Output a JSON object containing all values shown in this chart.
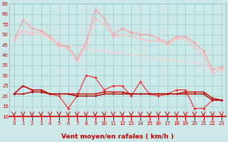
{
  "xlabel": "Vent moyen/en rafales ( km/h )",
  "x": [
    0,
    1,
    2,
    3,
    4,
    5,
    6,
    7,
    8,
    9,
    10,
    11,
    12,
    13,
    14,
    15,
    16,
    17,
    18,
    19,
    20,
    21,
    22,
    23
  ],
  "series": [
    {
      "name": "rafales_max_upper",
      "color": "#ff9999",
      "marker": "D",
      "markersize": 2.0,
      "linewidth": 0.8,
      "values": [
        47,
        57,
        53,
        52,
        49,
        45,
        44,
        38,
        46,
        62,
        58,
        50,
        53,
        51,
        50,
        50,
        48,
        46,
        49,
        49,
        46,
        42,
        33,
        34
      ]
    },
    {
      "name": "rafales_avg",
      "color": "#ffbbbb",
      "marker": "D",
      "markersize": 2.0,
      "linewidth": 0.8,
      "values": [
        47,
        52,
        51,
        51,
        48,
        44,
        43,
        37,
        45,
        58,
        55,
        49,
        50,
        49,
        48,
        47,
        47,
        45,
        48,
        48,
        44,
        40,
        31,
        33
      ]
    },
    {
      "name": "rafales_trend",
      "color": "#ffcccc",
      "marker": null,
      "markersize": 0,
      "linewidth": 0.8,
      "values": [
        47,
        51,
        50,
        50,
        48,
        46,
        45,
        44,
        43,
        42,
        42,
        41,
        41,
        40,
        40,
        39,
        38,
        38,
        37,
        37,
        36,
        35,
        34,
        33
      ]
    },
    {
      "name": "vent_max",
      "color": "#ff2222",
      "marker": "D",
      "markersize": 2.0,
      "linewidth": 0.8,
      "values": [
        21,
        25,
        23,
        23,
        21,
        20,
        14,
        20,
        30,
        29,
        23,
        25,
        25,
        20,
        27,
        21,
        20,
        21,
        23,
        23,
        14,
        14,
        18,
        18
      ]
    },
    {
      "name": "vent_moy1",
      "color": "#cc0000",
      "marker": "D",
      "markersize": 1.5,
      "linewidth": 1.0,
      "values": [
        21,
        25,
        23,
        23,
        21,
        21,
        21,
        21,
        21,
        21,
        22,
        22,
        22,
        21,
        21,
        21,
        21,
        21,
        21,
        22,
        22,
        22,
        19,
        18
      ]
    },
    {
      "name": "vent_moy2",
      "color": "#aa0000",
      "marker": "D",
      "markersize": 1.5,
      "linewidth": 1.0,
      "values": [
        21,
        21,
        22,
        22,
        21,
        21,
        21,
        20,
        20,
        20,
        21,
        21,
        21,
        21,
        21,
        21,
        21,
        21,
        21,
        21,
        21,
        21,
        18,
        18
      ]
    }
  ],
  "ylim": [
    10,
    65
  ],
  "yticks": [
    10,
    15,
    20,
    25,
    30,
    35,
    40,
    45,
    50,
    55,
    60,
    65
  ],
  "background_color": "#cce8e8",
  "grid_color": "#99cccc",
  "tick_label_color": "#cc0000",
  "axis_label_color": "#cc0000",
  "tick_fontsize": 5.0,
  "label_fontsize": 6.5
}
